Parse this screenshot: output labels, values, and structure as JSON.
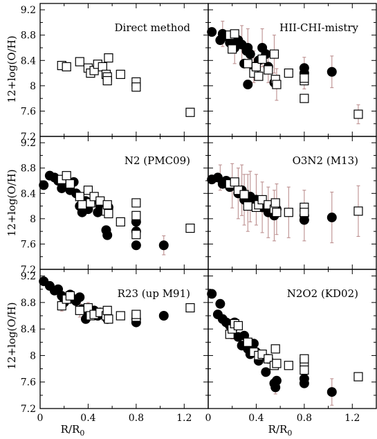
{
  "chart_data": {
    "type": "scatter",
    "layout": "3x2 panel grid, shared axes",
    "ylabel": "12+log(O/H)",
    "xlabel_main": "R/R",
    "xlabel_sub": "0",
    "xlim": [
      0,
      1.4
    ],
    "ylim": [
      7.2,
      9.3
    ],
    "xticks": [
      0,
      0.4,
      0.8,
      1.2
    ],
    "xtick_labels": [
      "0",
      "0.4",
      "0.8",
      "1.2"
    ],
    "yticks": [
      7.2,
      7.6,
      8,
      8.4,
      8.8,
      9.2
    ],
    "ytick_labels": [
      "7.2",
      "7.6",
      "8",
      "8.4",
      "8.8",
      "9.2"
    ],
    "colors": {
      "filled": "#000000",
      "open_fill": "#ffffff",
      "open_edge": "#000000",
      "errorbar": "#bc8f8f"
    },
    "panels": [
      {
        "title": "Direct method",
        "open_squares": [
          [
            0.18,
            8.32
          ],
          [
            0.22,
            8.3
          ],
          [
            0.33,
            8.38
          ],
          [
            0.4,
            8.28
          ],
          [
            0.42,
            8.2
          ],
          [
            0.45,
            8.24
          ],
          [
            0.48,
            8.34
          ],
          [
            0.52,
            8.3
          ],
          [
            0.55,
            8.18
          ],
          [
            0.56,
            8.14
          ],
          [
            0.56,
            8.08
          ],
          [
            0.57,
            8.44
          ],
          [
            0.67,
            8.18
          ],
          [
            0.8,
            8.06
          ],
          [
            0.8,
            7.98
          ],
          [
            1.25,
            7.58
          ]
        ],
        "filled_circles": [],
        "errorbars": []
      },
      {
        "title": "HII-CHI-mistry",
        "filled_circles": [
          [
            0.03,
            8.85
          ],
          [
            0.1,
            8.72
          ],
          [
            0.12,
            8.82
          ],
          [
            0.15,
            8.78
          ],
          [
            0.18,
            8.68
          ],
          [
            0.2,
            8.75
          ],
          [
            0.22,
            8.6
          ],
          [
            0.25,
            8.72
          ],
          [
            0.28,
            8.65
          ],
          [
            0.3,
            8.35
          ],
          [
            0.32,
            8.55
          ],
          [
            0.33,
            8.6
          ],
          [
            0.35,
            8.5
          ],
          [
            0.38,
            8.3
          ],
          [
            0.42,
            8.4
          ],
          [
            0.45,
            8.6
          ],
          [
            0.48,
            8.5
          ],
          [
            0.5,
            8.3
          ],
          [
            0.55,
            8.05
          ],
          [
            0.33,
            8.02
          ],
          [
            0.8,
            8.28
          ],
          [
            0.8,
            8.2
          ],
          [
            1.03,
            8.22
          ]
        ],
        "open_squares": [
          [
            0.18,
            8.8
          ],
          [
            0.2,
            8.58
          ],
          [
            0.22,
            8.82
          ],
          [
            0.33,
            8.35
          ],
          [
            0.38,
            8.2
          ],
          [
            0.4,
            8.3
          ],
          [
            0.42,
            8.15
          ],
          [
            0.45,
            8.42
          ],
          [
            0.5,
            8.25
          ],
          [
            0.55,
            8.5
          ],
          [
            0.56,
            8.1
          ],
          [
            0.57,
            8.02
          ],
          [
            0.67,
            8.2
          ],
          [
            0.8,
            8.08
          ],
          [
            0.8,
            8.12
          ],
          [
            0.8,
            7.8
          ],
          [
            1.25,
            7.55
          ]
        ],
        "errorbars": [
          [
            0.12,
            8.82,
            0.2
          ],
          [
            0.22,
            8.6,
            0.25
          ],
          [
            0.28,
            8.65,
            0.3
          ],
          [
            0.33,
            8.6,
            0.3
          ],
          [
            0.38,
            8.3,
            0.25
          ],
          [
            0.45,
            8.6,
            0.3
          ],
          [
            0.5,
            8.3,
            0.25
          ],
          [
            0.55,
            8.5,
            0.3
          ],
          [
            0.57,
            8.02,
            0.25
          ],
          [
            0.8,
            8.2,
            0.25
          ],
          [
            1.03,
            8.22,
            0.25
          ],
          [
            1.25,
            7.55,
            0.15
          ]
        ]
      },
      {
        "title": "N2 (PMC09)",
        "filled_circles": [
          [
            0.03,
            8.53
          ],
          [
            0.08,
            8.68
          ],
          [
            0.12,
            8.65
          ],
          [
            0.15,
            8.6
          ],
          [
            0.18,
            8.48
          ],
          [
            0.2,
            8.55
          ],
          [
            0.25,
            8.45
          ],
          [
            0.28,
            8.58
          ],
          [
            0.3,
            8.4
          ],
          [
            0.33,
            8.2
          ],
          [
            0.35,
            8.1
          ],
          [
            0.38,
            8.28
          ],
          [
            0.4,
            8.15
          ],
          [
            0.45,
            8.3
          ],
          [
            0.48,
            8.1
          ],
          [
            0.5,
            8.2
          ],
          [
            0.55,
            7.82
          ],
          [
            0.56,
            7.74
          ],
          [
            0.57,
            8.18
          ],
          [
            0.8,
            7.95
          ],
          [
            0.8,
            7.8
          ],
          [
            0.8,
            7.58
          ],
          [
            1.03,
            7.58
          ]
        ],
        "open_squares": [
          [
            0.18,
            8.62
          ],
          [
            0.22,
            8.68
          ],
          [
            0.25,
            8.55
          ],
          [
            0.33,
            8.35
          ],
          [
            0.35,
            8.22
          ],
          [
            0.4,
            8.45
          ],
          [
            0.42,
            8.25
          ],
          [
            0.45,
            8.35
          ],
          [
            0.5,
            8.28
          ],
          [
            0.55,
            8.12
          ],
          [
            0.56,
            8.22
          ],
          [
            0.57,
            8.08
          ],
          [
            0.67,
            7.95
          ],
          [
            0.8,
            8.25
          ],
          [
            0.8,
            8.05
          ],
          [
            0.8,
            7.75
          ],
          [
            1.25,
            7.85
          ]
        ],
        "errorbars": [
          [
            0.2,
            8.55,
            0.1
          ],
          [
            1.03,
            7.58,
            0.15
          ]
        ]
      },
      {
        "title": "O3N2 (M13)",
        "filled_circles": [
          [
            0.03,
            8.62
          ],
          [
            0.08,
            8.65
          ],
          [
            0.12,
            8.55
          ],
          [
            0.15,
            8.6
          ],
          [
            0.18,
            8.5
          ],
          [
            0.2,
            8.52
          ],
          [
            0.25,
            8.4
          ],
          [
            0.28,
            8.45
          ],
          [
            0.3,
            8.3
          ],
          [
            0.33,
            8.25
          ],
          [
            0.35,
            8.35
          ],
          [
            0.38,
            8.2
          ],
          [
            0.4,
            8.3
          ],
          [
            0.45,
            8.18
          ],
          [
            0.5,
            8.1
          ],
          [
            0.55,
            8.05
          ],
          [
            0.57,
            8.15
          ],
          [
            0.8,
            7.98
          ],
          [
            0.8,
            8.05
          ],
          [
            1.03,
            8.02
          ]
        ],
        "open_squares": [
          [
            0.18,
            8.55
          ],
          [
            0.22,
            8.58
          ],
          [
            0.25,
            8.45
          ],
          [
            0.3,
            8.38
          ],
          [
            0.33,
            8.2
          ],
          [
            0.4,
            8.18
          ],
          [
            0.42,
            8.22
          ],
          [
            0.45,
            8.3
          ],
          [
            0.5,
            8.22
          ],
          [
            0.55,
            8.15
          ],
          [
            0.56,
            8.25
          ],
          [
            0.57,
            8.1
          ],
          [
            0.67,
            8.1
          ],
          [
            0.8,
            8.18
          ],
          [
            0.8,
            8.1
          ],
          [
            1.25,
            8.12
          ]
        ],
        "errorbars": [
          [
            0.1,
            8.65,
            0.2
          ],
          [
            0.2,
            8.52,
            0.35
          ],
          [
            0.25,
            8.4,
            0.4
          ],
          [
            0.28,
            8.45,
            0.4
          ],
          [
            0.3,
            8.3,
            0.4
          ],
          [
            0.33,
            8.25,
            0.45
          ],
          [
            0.35,
            8.35,
            0.4
          ],
          [
            0.4,
            8.3,
            0.4
          ],
          [
            0.45,
            8.18,
            0.4
          ],
          [
            0.5,
            8.1,
            0.4
          ],
          [
            0.55,
            8.05,
            0.4
          ],
          [
            0.57,
            8.15,
            0.4
          ],
          [
            0.67,
            8.1,
            0.4
          ],
          [
            0.8,
            8.05,
            0.4
          ],
          [
            1.03,
            8.02,
            0.4
          ],
          [
            1.25,
            8.12,
            0.4
          ]
        ]
      },
      {
        "title": "R23 (up M91)",
        "filled_circles": [
          [
            0.03,
            9.12
          ],
          [
            0.08,
            9.05
          ],
          [
            0.12,
            8.98
          ],
          [
            0.15,
            9.0
          ],
          [
            0.18,
            8.9
          ],
          [
            0.2,
            8.8
          ],
          [
            0.25,
            8.92
          ],
          [
            0.28,
            8.85
          ],
          [
            0.3,
            8.82
          ],
          [
            0.33,
            8.88
          ],
          [
            0.35,
            8.7
          ],
          [
            0.38,
            8.55
          ],
          [
            0.4,
            8.65
          ],
          [
            0.42,
            8.62
          ],
          [
            0.45,
            8.68
          ],
          [
            0.48,
            8.6
          ],
          [
            0.5,
            8.65
          ],
          [
            0.55,
            8.62
          ],
          [
            0.56,
            8.55
          ],
          [
            0.8,
            8.55
          ],
          [
            0.8,
            8.5
          ],
          [
            1.03,
            8.6
          ]
        ],
        "open_squares": [
          [
            0.18,
            8.75
          ],
          [
            0.22,
            8.85
          ],
          [
            0.25,
            8.9
          ],
          [
            0.33,
            8.68
          ],
          [
            0.4,
            8.72
          ],
          [
            0.42,
            8.6
          ],
          [
            0.45,
            8.62
          ],
          [
            0.5,
            8.65
          ],
          [
            0.55,
            8.6
          ],
          [
            0.56,
            8.68
          ],
          [
            0.57,
            8.55
          ],
          [
            0.67,
            8.6
          ],
          [
            0.8,
            8.58
          ],
          [
            0.8,
            8.62
          ],
          [
            1.25,
            8.72
          ]
        ],
        "errorbars": [
          [
            0.18,
            8.75,
            0.08
          ],
          [
            0.33,
            8.68,
            0.1
          ],
          [
            0.4,
            8.72,
            0.08
          ],
          [
            1.25,
            8.72,
            0.06
          ]
        ]
      },
      {
        "title": "N2O2 (KD02)",
        "filled_circles": [
          [
            0.03,
            8.93
          ],
          [
            0.08,
            8.62
          ],
          [
            0.1,
            8.78
          ],
          [
            0.12,
            8.55
          ],
          [
            0.15,
            8.5
          ],
          [
            0.18,
            8.45
          ],
          [
            0.2,
            8.38
          ],
          [
            0.22,
            8.5
          ],
          [
            0.25,
            8.28
          ],
          [
            0.28,
            8.15
          ],
          [
            0.3,
            8.3
          ],
          [
            0.33,
            8.1
          ],
          [
            0.35,
            8.02
          ],
          [
            0.38,
            8.18
          ],
          [
            0.4,
            8.05
          ],
          [
            0.42,
            7.92
          ],
          [
            0.45,
            8.0
          ],
          [
            0.48,
            7.75
          ],
          [
            0.5,
            7.95
          ],
          [
            0.55,
            7.58
          ],
          [
            0.56,
            7.52
          ],
          [
            0.57,
            7.62
          ],
          [
            0.8,
            7.65
          ],
          [
            0.8,
            7.58
          ],
          [
            1.03,
            7.45
          ]
        ],
        "open_squares": [
          [
            0.18,
            8.32
          ],
          [
            0.2,
            8.4
          ],
          [
            0.22,
            8.48
          ],
          [
            0.25,
            8.45
          ],
          [
            0.33,
            8.2
          ],
          [
            0.38,
            8.05
          ],
          [
            0.42,
            8.0
          ],
          [
            0.45,
            8.02
          ],
          [
            0.5,
            7.95
          ],
          [
            0.55,
            7.85
          ],
          [
            0.56,
            8.1
          ],
          [
            0.57,
            7.88
          ],
          [
            0.67,
            7.85
          ],
          [
            0.8,
            7.9
          ],
          [
            0.8,
            7.78
          ],
          [
            0.8,
            7.95
          ],
          [
            1.25,
            7.68
          ]
        ],
        "errorbars": [
          [
            0.2,
            8.4,
            0.15
          ],
          [
            0.56,
            7.52,
            0.1
          ],
          [
            1.03,
            7.45,
            0.2
          ]
        ]
      }
    ]
  }
}
